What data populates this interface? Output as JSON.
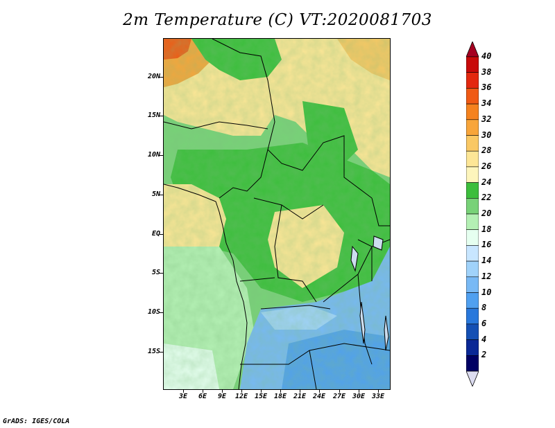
{
  "title": "2m Temperature (C) VT:2020081703",
  "credit": "GrADS: IGES/COLA",
  "map": {
    "region": "Central Africa",
    "lon_range": [
      0,
      35
    ],
    "lat_range": [
      -20,
      24
    ],
    "lat_ticks": [
      "20N",
      "15N",
      "10N",
      "5N",
      "EQ",
      "5S",
      "10S",
      "15S"
    ],
    "lon_ticks": [
      "3E",
      "6E",
      "9E",
      "12E",
      "15E",
      "18E",
      "21E",
      "24E",
      "27E",
      "30E",
      "33E"
    ]
  },
  "colorbar": {
    "labels": [
      "40",
      "38",
      "36",
      "34",
      "32",
      "30",
      "28",
      "26",
      "24",
      "22",
      "20",
      "18",
      "16",
      "14",
      "12",
      "10",
      "8",
      "6",
      "4",
      "2"
    ],
    "colors": [
      "#a50021",
      "#c80a0a",
      "#e3280f",
      "#f05a14",
      "#f5821e",
      "#f8a53a",
      "#fac864",
      "#fde696",
      "#fdf5bc",
      "#3cbe3c",
      "#78d278",
      "#b4f0b4",
      "#e6fff0",
      "#c8e6ff",
      "#a0d2fa",
      "#78b9f5",
      "#50a0f0",
      "#2878dc",
      "#1450b4",
      "#0a2896",
      "#000064",
      "#dcdcf0"
    ],
    "over_color": "#a50021",
    "under_color": "#dcdcf0"
  }
}
